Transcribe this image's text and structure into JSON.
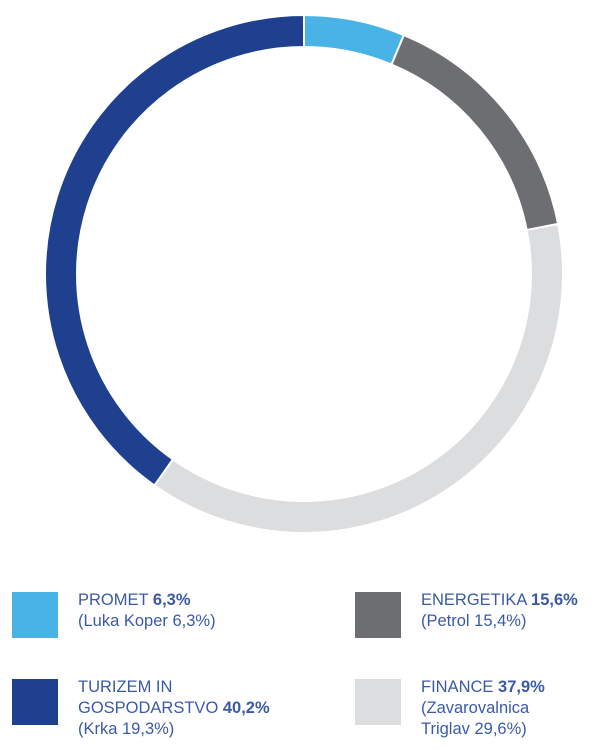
{
  "chart_data": {
    "type": "pie",
    "title": "",
    "slices": [
      {
        "label": "PROMET",
        "value": 6.3,
        "value_label": "6,3%",
        "detail": "(Luka Koper 6,3%)",
        "color": "#4ab3e6"
      },
      {
        "label": "ENERGETIKA",
        "value": 15.6,
        "value_label": "15,6%",
        "detail": "(Petrol 15,4%)",
        "color": "#6d6e71"
      },
      {
        "label": "FINANCE",
        "value": 37.9,
        "value_label": "37,9%",
        "detail": "(Zavarovalnica Triglav 29,6%)",
        "color": "#dcdddf"
      },
      {
        "label": "TURIZEM IN GOSPODARSTVO",
        "value": 40.2,
        "value_label": "40,2%",
        "detail": "(Krka 19,3%)",
        "color": "#1f3f8f"
      }
    ],
    "donut": true,
    "start_angle_deg": 0,
    "direction": "clockwise",
    "legend_position": "bottom"
  },
  "legend": [
    {
      "line1": "PROMET",
      "value": "6,3%",
      "line2": "(Luka Koper 6,3%)",
      "color": "#4ab3e6"
    },
    {
      "line1": "ENERGETIKA",
      "value": "15,6%",
      "line2": "(Petrol 15,4%)",
      "color": "#6d6e71"
    },
    {
      "line1": "TURIZEM IN",
      "line1b": "GOSPODARSTVO",
      "value": "40,2%",
      "line2": "(Krka 19,3%)",
      "color": "#1f3f8f"
    },
    {
      "line1": "FINANCE",
      "value": "37,9%",
      "line2": "(Zavarovalnica",
      "line3": "Triglav 29,6%)",
      "color": "#dcdddf"
    }
  ],
  "colors": {
    "text": "#3a5aa8",
    "gap": "#ffffff"
  }
}
